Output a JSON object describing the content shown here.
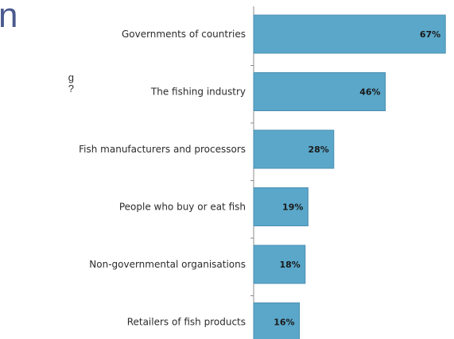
{
  "header": {
    "title_fragment": "n",
    "question_lines": [
      "g",
      "?"
    ]
  },
  "chart_data": {
    "type": "bar",
    "orientation": "horizontal",
    "categories": [
      "Governments of countries",
      "The fishing industry",
      "Fish manufacturers and processors",
      "People who buy or eat fish",
      "Non-governmental organisations",
      "Retailers of fish products"
    ],
    "values": [
      67,
      46,
      28,
      19,
      18,
      16
    ],
    "value_labels": [
      "67%",
      "46%",
      "28%",
      "19%",
      "18%",
      "16%"
    ],
    "xlim": [
      0,
      70
    ],
    "unit": "%",
    "grid": false,
    "bar_color": "#5aa7ca",
    "bar_edge_color": "#4b8fb0"
  }
}
